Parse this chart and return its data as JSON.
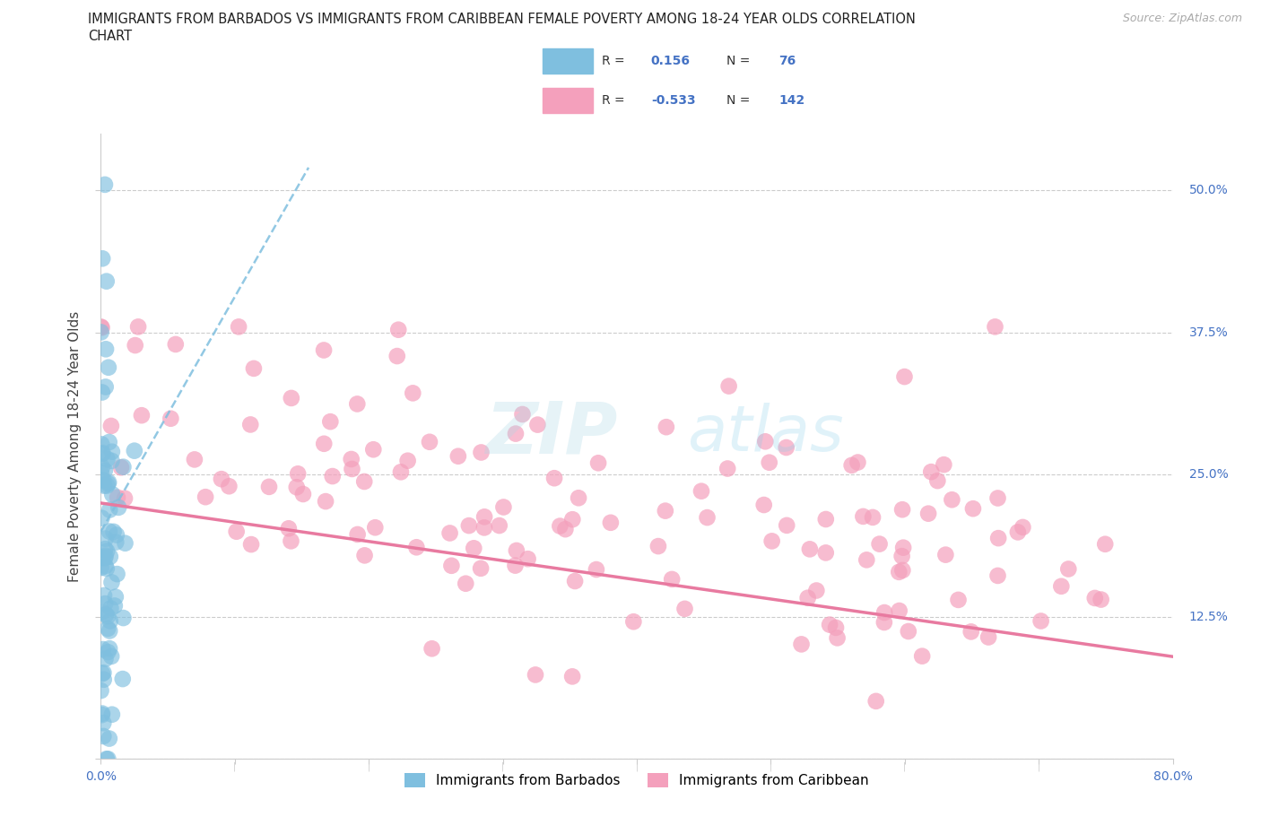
{
  "title_line1": "IMMIGRANTS FROM BARBADOS VS IMMIGRANTS FROM CARIBBEAN FEMALE POVERTY AMONG 18-24 YEAR OLDS CORRELATION",
  "title_line2": "CHART",
  "source": "Source: ZipAtlas.com",
  "ylabel": "Female Poverty Among 18-24 Year Olds",
  "xlim": [
    0.0,
    0.8
  ],
  "ylim": [
    0.0,
    0.55
  ],
  "xticks": [
    0.0,
    0.1,
    0.2,
    0.3,
    0.4,
    0.5,
    0.6,
    0.7,
    0.8
  ],
  "yticks": [
    0.0,
    0.125,
    0.25,
    0.375,
    0.5
  ],
  "barbados_color": "#7fbfdf",
  "caribbean_color": "#f4a0bc",
  "barbados_R": 0.156,
  "barbados_N": 76,
  "caribbean_R": -0.533,
  "caribbean_N": 142,
  "legend_label_barbados": "Immigrants from Barbados",
  "legend_label_caribbean": "Immigrants from Caribbean",
  "watermark_zip": "ZIP",
  "watermark_atlas": "atlas",
  "background_color": "#ffffff",
  "grid_color": "#cccccc",
  "label_color": "#4472c4",
  "R_text_color": "#333333",
  "trend_blue_color": "#7fbfdf",
  "trend_pink_color": "#e87aa0"
}
